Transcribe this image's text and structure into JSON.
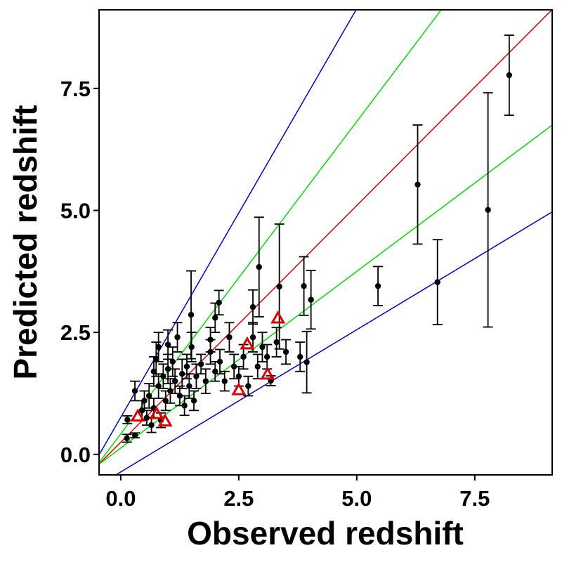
{
  "chart_data": {
    "type": "scatter",
    "x_label": "Observed redshift",
    "y_label": "Predicted redshift",
    "xlim": [
      -0.46,
      9.14
    ],
    "ylim": [
      -0.42,
      9.11
    ],
    "xticks": [
      {
        "value": 0,
        "label": "0.0"
      },
      2.5,
      {
        "value": 5,
        "label": "5.0"
      },
      7.5
    ],
    "yticks": [
      {
        "value": 0,
        "label": "0.0"
      },
      2.5,
      {
        "value": 5,
        "label": "5.0"
      },
      7.5
    ],
    "lines": [
      {
        "color": "#0000cc",
        "slope": 1.675,
        "intercept": 0.76
      },
      {
        "color": "#00dd00",
        "slope": 1.28,
        "intercept": 0.42
      },
      {
        "color": "#dd0000",
        "slope": 0.97,
        "intercept": 0.25
      },
      {
        "color": "#00dd00",
        "slope": 0.724,
        "intercept": 0.13
      },
      {
        "color": "#0000cc",
        "slope": 0.583,
        "intercept": -0.36
      }
    ],
    "points": {
      "color": "#000000",
      "x": [
        8.23,
        6.29,
        7.78,
        6.71,
        5.45,
        2.93,
        3.36,
        3.88,
        4.03,
        2.08,
        1.49,
        3.94,
        3.18,
        2.8,
        0.13,
        0.14,
        0.3,
        0.3,
        0.45,
        0.5,
        0.55,
        0.6,
        0.65,
        0.7,
        0.7,
        0.75,
        0.8,
        0.85,
        0.9,
        0.95,
        1.0,
        1.05,
        1.1,
        1.15,
        1.2,
        1.25,
        1.3,
        1.35,
        1.4,
        1.45,
        1.5,
        1.55,
        1.6,
        1.7,
        1.8,
        1.9,
        2.0,
        2.1,
        2.2,
        2.3,
        2.4,
        2.5,
        2.6,
        2.7,
        2.8,
        2.9,
        3.0,
        3.1,
        3.3,
        3.5,
        3.8,
        1.9,
        2.0,
        1.0,
        0.8
      ],
      "y": [
        7.77,
        5.53,
        5.01,
        3.53,
        3.45,
        3.84,
        3.44,
        3.45,
        3.17,
        3.11,
        2.86,
        1.89,
        1.51,
        3.02,
        0.33,
        0.71,
        0.39,
        1.3,
        0.9,
        1.1,
        0.75,
        1.2,
        0.6,
        1.7,
        0.95,
        1.95,
        1.4,
        0.7,
        1.6,
        1.1,
        1.75,
        1.3,
        1.9,
        1.5,
        2.4,
        1.2,
        1.65,
        1.0,
        1.8,
        1.4,
        2.2,
        1.1,
        1.6,
        1.85,
        1.5,
        2.1,
        1.7,
        1.9,
        1.5,
        2.4,
        1.8,
        1.6,
        2.0,
        1.4,
        2.4,
        1.8,
        2.2,
        2.0,
        2.3,
        2.1,
        2.0,
        2.35,
        2.8,
        2.25,
        2.2
      ],
      "yerr": [
        0.82,
        1.22,
        2.4,
        0.87,
        0.4,
        1.02,
        1.28,
        0.6,
        0.6,
        0.25,
        0.9,
        0.63,
        0.1,
        0.35,
        0.08,
        0.08,
        0.05,
        0.2,
        0.2,
        0.2,
        0.15,
        0.25,
        0.15,
        0.3,
        0.2,
        0.35,
        0.25,
        0.15,
        0.25,
        0.2,
        0.3,
        0.25,
        0.3,
        0.25,
        0.3,
        0.2,
        0.3,
        0.2,
        0.25,
        0.25,
        0.3,
        0.2,
        0.25,
        0.2,
        0.25,
        0.25,
        0.2,
        0.25,
        0.2,
        0.3,
        0.25,
        0.2,
        0.25,
        0.2,
        0.3,
        0.25,
        0.3,
        0.25,
        0.3,
        0.25,
        0.3,
        0.25,
        0.3,
        0.3,
        0.3
      ]
    },
    "triangles": {
      "color": "#dd0000",
      "x": [
        0.36,
        0.76,
        0.94,
        2.68,
        2.5,
        3.11,
        3.33
      ],
      "y": [
        0.78,
        0.83,
        0.68,
        2.26,
        1.32,
        1.64,
        2.79
      ]
    }
  }
}
